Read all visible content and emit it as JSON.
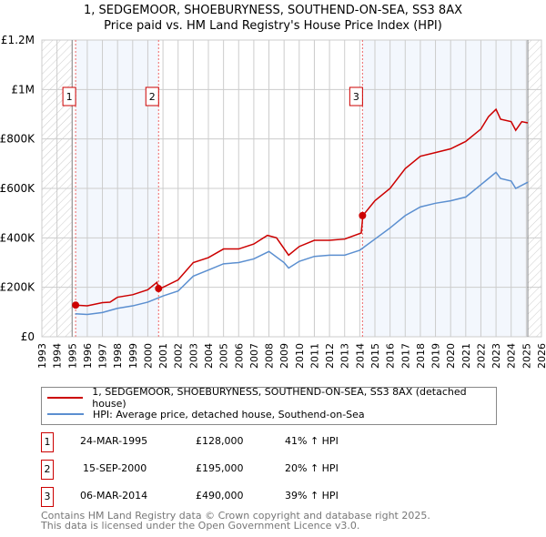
{
  "chart_data": {
    "type": "line",
    "title": "1, SEDGEMOOR, SHOEBURYNESS, SOUTHEND-ON-SEA, SS3 8AX",
    "subtitle": "Price paid vs. HM Land Registry's House Price Index (HPI)",
    "xlim": [
      1993,
      2026
    ],
    "ylim": [
      0,
      1200000
    ],
    "x_ticks": [
      "1993",
      "1994",
      "1995",
      "1996",
      "1997",
      "1998",
      "1999",
      "2000",
      "2001",
      "2002",
      "2003",
      "2004",
      "2005",
      "2006",
      "2007",
      "2008",
      "2009",
      "2010",
      "2011",
      "2012",
      "2013",
      "2014",
      "2015",
      "2016",
      "2017",
      "2018",
      "2019",
      "2020",
      "2021",
      "2022",
      "2023",
      "2024",
      "2025",
      "2026"
    ],
    "y_ticks": [
      {
        "v": 0,
        "label": "£0"
      },
      {
        "v": 200000,
        "label": "£200K"
      },
      {
        "v": 400000,
        "label": "£400K"
      },
      {
        "v": 600000,
        "label": "£600K"
      },
      {
        "v": 800000,
        "label": "£800K"
      },
      {
        "v": 1000000,
        "label": "£1M"
      },
      {
        "v": 1200000,
        "label": "£1.2M"
      }
    ],
    "grid": true,
    "series": [
      {
        "name": "1, SEDGEMOOR, SHOEBURYNESS, SOUTHEND-ON-SEA, SS3 8AX (detached house)",
        "color": "#cc0000",
        "x": [
          1995.2,
          1996,
          1997,
          1997.5,
          1998,
          1999,
          2000,
          2000.6,
          2000.7,
          2001,
          2002,
          2003,
          2004,
          2005,
          2006,
          2007,
          2007.9,
          2008.5,
          2009.3,
          2010,
          2011,
          2012,
          2013,
          2014.1,
          2014.2,
          2015,
          2016,
          2017,
          2018,
          2019,
          2020,
          2021,
          2022,
          2022.5,
          2023,
          2023.3,
          2024,
          2024.3,
          2024.7,
          2025.1
        ],
        "y": [
          128000,
          125000,
          138000,
          140000,
          160000,
          170000,
          190000,
          220000,
          195000,
          200000,
          230000,
          300000,
          320000,
          355000,
          355000,
          375000,
          410000,
          400000,
          330000,
          365000,
          390000,
          390000,
          395000,
          420000,
          490000,
          550000,
          600000,
          680000,
          730000,
          745000,
          760000,
          790000,
          840000,
          890000,
          920000,
          880000,
          870000,
          835000,
          870000,
          865000
        ]
      },
      {
        "name": "HPI: Average price, detached house, Southend-on-Sea",
        "color": "#5b8fd0",
        "x": [
          1995.2,
          1996,
          1997,
          1998,
          1999,
          2000,
          2001,
          2002,
          2003,
          2004,
          2005,
          2006,
          2007,
          2008,
          2009,
          2009.3,
          2010,
          2011,
          2012,
          2013,
          2014,
          2015,
          2016,
          2017,
          2018,
          2019,
          2020,
          2021,
          2022,
          2022.5,
          2023,
          2023.3,
          2024,
          2024.3,
          2025.1
        ],
        "y": [
          93000,
          90000,
          98000,
          115000,
          125000,
          140000,
          165000,
          185000,
          245000,
          270000,
          295000,
          300000,
          315000,
          345000,
          300000,
          278000,
          305000,
          325000,
          330000,
          330000,
          350000,
          395000,
          440000,
          490000,
          525000,
          540000,
          550000,
          565000,
          615000,
          640000,
          665000,
          640000,
          630000,
          600000,
          625000
        ]
      }
    ],
    "sales": [
      {
        "label": "1",
        "x": 1995.23,
        "date": "24-MAR-1995",
        "price": "£128,000",
        "y": 128000,
        "hpi": "41% ↑ HPI"
      },
      {
        "label": "2",
        "x": 2000.71,
        "date": "15-SEP-2000",
        "price": "£195,000",
        "y": 195000,
        "hpi": "20% ↑ HPI"
      },
      {
        "label": "3",
        "x": 2014.18,
        "date": "06-MAR-2014",
        "price": "£490,000",
        "y": 490000,
        "hpi": "39% ↑ HPI"
      }
    ],
    "data_range": [
      1995.0,
      2025.1
    ]
  },
  "footer": {
    "line1": "Contains HM Land Registry data © Crown copyright and database right 2025.",
    "line2": "This data is licensed under the Open Government Licence v3.0."
  }
}
